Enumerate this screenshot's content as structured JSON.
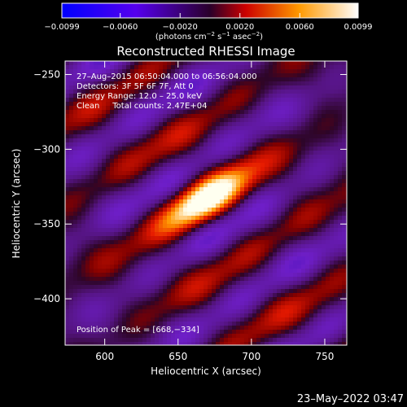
{
  "chart_data": {
    "type": "heatmap",
    "title": "Reconstructed RHESSI Image",
    "xlabel": "Heliocentric X (arcsec)",
    "ylabel": "Heliocentric Y (arcsec)",
    "xlim": [
      573,
      765
    ],
    "ylim": [
      -431,
      -241
    ],
    "x_ticks": [
      600,
      650,
      700,
      750
    ],
    "x_tick_labels": [
      "600",
      "650",
      "700",
      "750"
    ],
    "y_ticks": [
      -250,
      -300,
      -350,
      -400
    ],
    "y_tick_labels": [
      "−250",
      "−300",
      "−350",
      "−400"
    ],
    "colorbar": {
      "range": [
        -0.0099,
        0.0099
      ],
      "ticks": [
        -0.0099,
        -0.006,
        -0.002,
        0.002,
        0.006,
        0.0099
      ],
      "tick_labels": [
        "−0.0099",
        "−0.0060",
        "−0.0020",
        "0.0020",
        "0.0060",
        "0.0099"
      ],
      "unit_main": "(photons cm",
      "unit_sup1": "−2",
      "unit_mid": " s",
      "unit_sup2": "−1",
      "unit_mid2": " asec",
      "unit_sup3": "−2",
      "unit_end": ")"
    },
    "annotations": [
      "27–Aug–2015 06:50:04.000 to 06:56:04.000",
      "Detectors: 3F 5F 6F 7F, Att 0",
      "Energy Range: 12.0 – 25.0 keV",
      "Clean     Total counts: 2.47E+04"
    ],
    "peak_label": "Position of Peak = [668,−334]",
    "peak": {
      "x": 668,
      "y": -334
    }
  },
  "footer": {
    "timestamp": "23–May–2022 03:47"
  }
}
